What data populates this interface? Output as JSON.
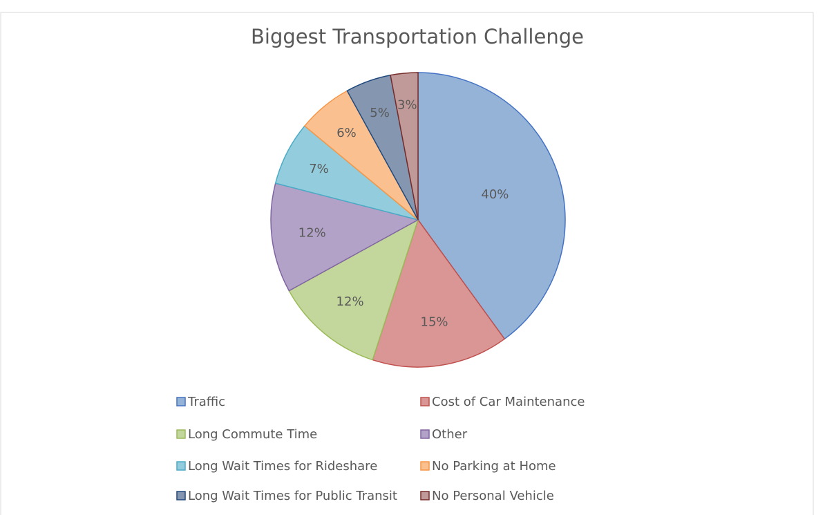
{
  "chart_data": {
    "type": "pie",
    "title": "Biggest Transportation Challenge",
    "categories": [
      "Traffic",
      "Cost of Car Maintenance",
      "Long Commute Time",
      "Other",
      "Long Wait Times for Rideshare",
      "No Parking at Home",
      "Long Wait Times for Public Transit",
      "No Personal Vehicle"
    ],
    "values": [
      40,
      15,
      12,
      12,
      7,
      6,
      5,
      3
    ],
    "value_labels": [
      "40%",
      "15%",
      "12%",
      "12%",
      "7%",
      "6%",
      "5%",
      "3%"
    ],
    "colors": [
      "#95b3d7",
      "#d99694",
      "#c3d69b",
      "#b3a2c7",
      "#93cddd",
      "#fac090",
      "#8496b0",
      "#c09a98"
    ],
    "edge_colors": [
      "#4472c4",
      "#c0504d",
      "#9bbb59",
      "#8064a2",
      "#4bacc6",
      "#f79646",
      "#1f497d",
      "#772c2a"
    ],
    "legend": "bottom"
  }
}
